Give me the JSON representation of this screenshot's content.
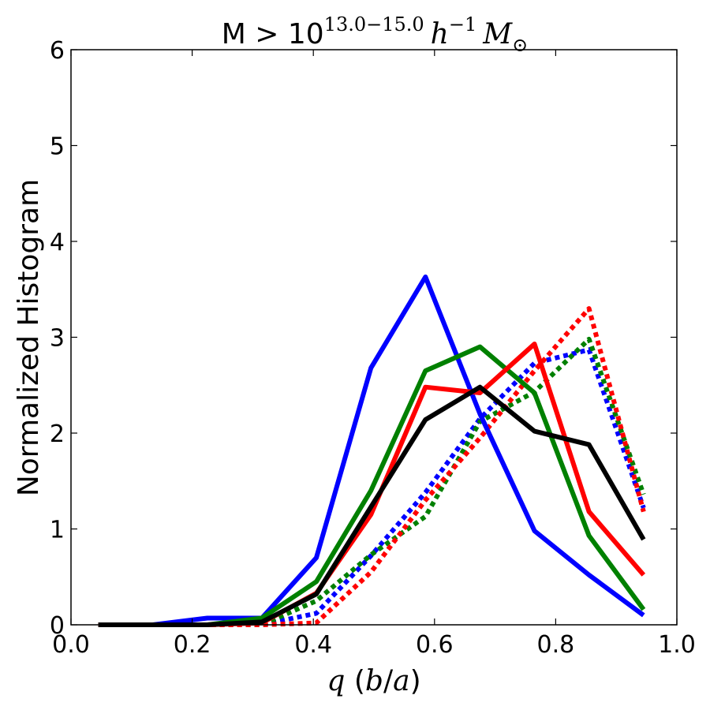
{
  "chart_data": {
    "type": "line",
    "title": {
      "prefix": "M > 10",
      "exponent": "13.0−15.0",
      "h": "h",
      "h_exponent": "−1",
      "msun": "M",
      "msun_sub": "⊙"
    },
    "xlabel": {
      "q": "q",
      "rest": " (",
      "b": "b",
      "slash": "/",
      "a": "a",
      "close": ")"
    },
    "ylabel": "Normalized Histogram",
    "xlim": [
      0.0,
      1.0
    ],
    "ylim": [
      0,
      6
    ],
    "xticks": [
      0.0,
      0.2,
      0.4,
      0.6,
      0.8,
      1.0
    ],
    "xtick_labels": [
      "0.0",
      "0.2",
      "0.4",
      "0.6",
      "0.8",
      "1.0"
    ],
    "yticks": [
      0,
      1,
      2,
      3,
      4,
      5,
      6
    ],
    "ytick_labels": [
      "0",
      "1",
      "2",
      "3",
      "4",
      "5",
      "6"
    ],
    "x": [
      0.045,
      0.135,
      0.225,
      0.315,
      0.405,
      0.495,
      0.585,
      0.675,
      0.765,
      0.855,
      0.945
    ],
    "series": [
      {
        "name": "blue-solid",
        "color": "#0000ff",
        "style": "solid",
        "values": [
          0,
          0,
          0.07,
          0.07,
          0.7,
          2.68,
          3.63,
          2.2,
          0.98,
          0.52,
          0.1
        ]
      },
      {
        "name": "green-solid",
        "color": "#008000",
        "style": "solid",
        "values": [
          0,
          0,
          0,
          0.07,
          0.45,
          1.4,
          2.65,
          2.9,
          2.42,
          0.93,
          0.16
        ]
      },
      {
        "name": "red-solid",
        "color": "#ff0000",
        "style": "solid",
        "values": [
          0,
          0,
          0,
          0.02,
          0.33,
          1.15,
          2.48,
          2.42,
          2.93,
          1.18,
          0.52
        ]
      },
      {
        "name": "black-solid",
        "color": "#000000",
        "style": "solid",
        "values": [
          0,
          0,
          0,
          0.03,
          0.32,
          1.23,
          2.14,
          2.48,
          2.02,
          1.88,
          0.89
        ]
      },
      {
        "name": "blue-dotted",
        "color": "#0000ff",
        "style": "dotted",
        "values": [
          0,
          0,
          0,
          0,
          0.12,
          0.72,
          1.38,
          2.15,
          2.73,
          2.87,
          1.22
        ]
      },
      {
        "name": "green-dotted",
        "color": "#008000",
        "style": "dotted",
        "values": [
          0,
          0,
          0,
          0,
          0.25,
          0.73,
          1.13,
          2.12,
          2.43,
          2.98,
          1.36
        ]
      },
      {
        "name": "red-dotted",
        "color": "#ff0000",
        "style": "dotted",
        "values": [
          0,
          0,
          0,
          0,
          0.02,
          0.55,
          1.3,
          1.95,
          2.65,
          3.3,
          1.18
        ]
      }
    ]
  }
}
